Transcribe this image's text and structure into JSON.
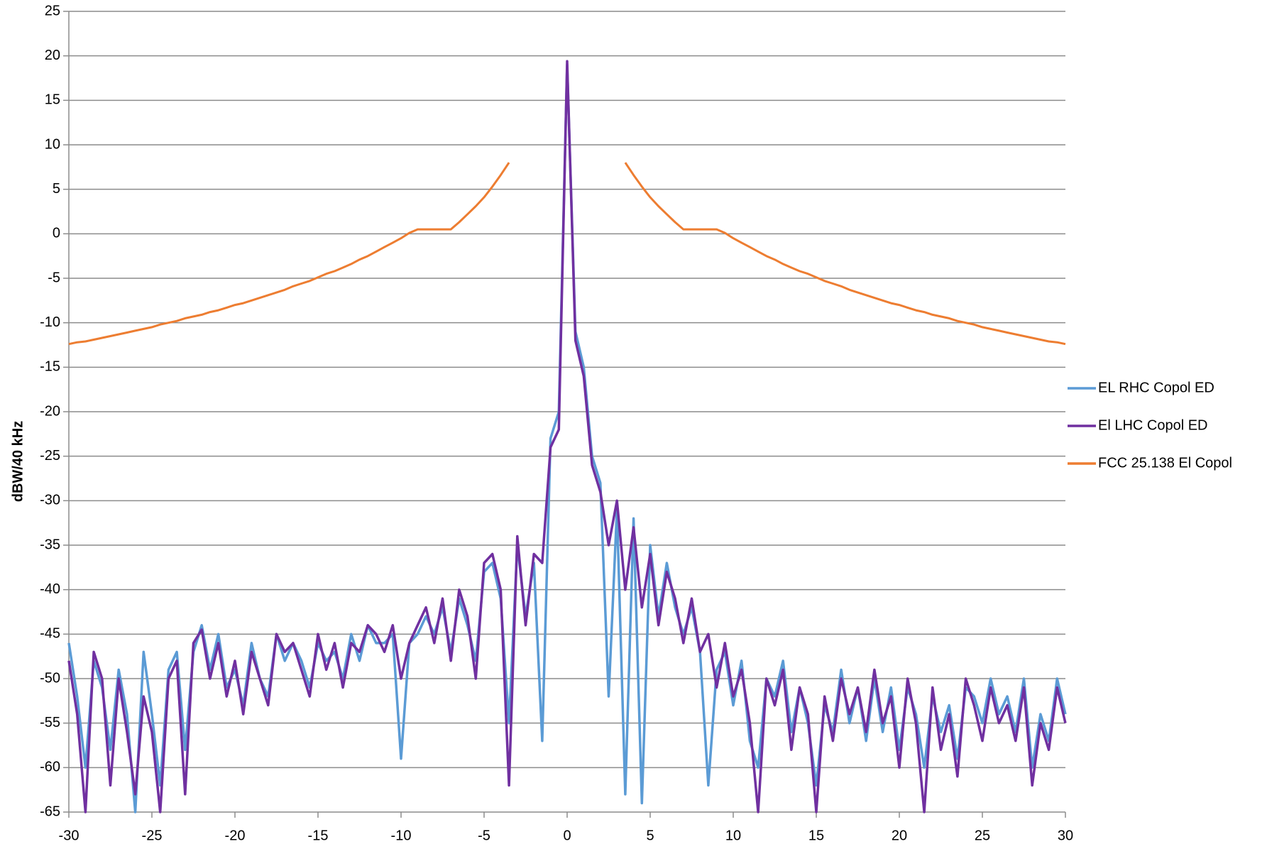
{
  "chart_data": {
    "type": "line",
    "y_label": "dBW/40 kHz",
    "x": [
      -30,
      -29.5,
      -29,
      -28.5,
      -28,
      -27.5,
      -27,
      -26.5,
      -26,
      -25.5,
      -25,
      -24.5,
      -24,
      -23.5,
      -23,
      -22.5,
      -22,
      -21.5,
      -21,
      -20.5,
      -20,
      -19.5,
      -19,
      -18.5,
      -18,
      -17.5,
      -17,
      -16.5,
      -16,
      -15.5,
      -15,
      -14.5,
      -14,
      -13.5,
      -13,
      -12.5,
      -12,
      -11.5,
      -11,
      -10.5,
      -10,
      -9.5,
      -9,
      -8.5,
      -8,
      -7.5,
      -7,
      -6.5,
      -6,
      -5.5,
      -5,
      -4.5,
      -4,
      -3.5,
      -3,
      -2.5,
      -2,
      -1.5,
      -1,
      -0.5,
      0,
      0.5,
      1,
      1.5,
      2,
      2.5,
      3,
      3.5,
      4,
      4.5,
      5,
      5.5,
      6,
      6.5,
      7,
      7.5,
      8,
      8.5,
      9,
      9.5,
      10,
      10.5,
      11,
      11.5,
      12,
      12.5,
      13,
      13.5,
      14,
      14.5,
      15,
      15.5,
      16,
      16.5,
      17,
      17.5,
      18,
      18.5,
      19,
      19.5,
      20,
      20.5,
      21,
      21.5,
      22,
      22.5,
      23,
      23.5,
      24,
      24.5,
      25,
      25.5,
      26,
      26.5,
      27,
      27.5,
      28,
      28.5,
      29,
      29.5,
      30
    ],
    "series": [
      {
        "name": "EL RHC Copol ED",
        "color": "#5b9bd5",
        "values": [
          -46,
          -52,
          -60,
          -48,
          -51,
          -58,
          -49,
          -54,
          -65,
          -47,
          -54,
          -62,
          -49,
          -47,
          -58,
          -47,
          -44,
          -49,
          -45,
          -51,
          -49,
          -53,
          -46,
          -50,
          -52,
          -45,
          -48,
          -46,
          -48,
          -51,
          -46,
          -48,
          -47,
          -50,
          -45,
          -48,
          -44,
          -46,
          -46,
          -45,
          -59,
          -46,
          -45,
          -43,
          -45,
          -42,
          -47,
          -41,
          -44,
          -48,
          -38,
          -37,
          -41,
          -55,
          -35,
          -43,
          -37,
          -57,
          -23,
          -20,
          19,
          -11,
          -15,
          -25,
          -28,
          -52,
          -31,
          -63,
          -32,
          -64,
          -35,
          -43,
          -37,
          -42,
          -45,
          -42,
          -47,
          -62,
          -49,
          -47,
          -53,
          -48,
          -57,
          -60,
          -50,
          -52,
          -48,
          -56,
          -51,
          -55,
          -62,
          -53,
          -56,
          -49,
          -55,
          -51,
          -57,
          -50,
          -56,
          -51,
          -58,
          -51,
          -54,
          -60,
          -52,
          -56,
          -53,
          -59,
          -51,
          -52,
          -55,
          -50,
          -54,
          -52,
          -56,
          -50,
          -60,
          -54,
          -57,
          -50,
          -54
        ]
      },
      {
        "name": "El LHC Copol ED",
        "color": "#7030a0",
        "values": [
          -48,
          -54,
          -65,
          -47,
          -50,
          -62,
          -50,
          -56,
          -63,
          -52,
          -56,
          -65,
          -50,
          -48,
          -63,
          -46,
          -44.5,
          -50,
          -46,
          -52,
          -48,
          -54,
          -47,
          -50,
          -53,
          -45,
          -47,
          -46,
          -49,
          -52,
          -45,
          -49,
          -46,
          -51,
          -46,
          -47,
          -44,
          -45,
          -47,
          -44,
          -50,
          -46,
          -44,
          -42,
          -46,
          -41,
          -48,
          -40,
          -43,
          -50,
          -37,
          -36,
          -40,
          -62,
          -34,
          -44,
          -36,
          -37,
          -24,
          -22,
          19.4,
          -12,
          -16,
          -26,
          -29,
          -35,
          -30,
          -40,
          -33,
          -42,
          -36,
          -44,
          -38,
          -41,
          -46,
          -41,
          -47,
          -45,
          -51,
          -46,
          -52,
          -49,
          -55,
          -65,
          -50,
          -53,
          -49,
          -58,
          -51,
          -54,
          -65,
          -52,
          -57,
          -50,
          -54,
          -51,
          -56,
          -49,
          -55,
          -52,
          -60,
          -50,
          -55,
          -65,
          -51,
          -58,
          -54,
          -61,
          -50,
          -53,
          -57,
          -51,
          -55,
          -53,
          -57,
          -51,
          -62,
          -55,
          -58,
          -51,
          -55
        ]
      },
      {
        "name": "FCC 25.138 El Copol",
        "color": "#ed7d31",
        "values": [
          -12.4,
          -12.2,
          -12.1,
          -11.9,
          -11.7,
          -11.5,
          -11.3,
          -11.1,
          -10.9,
          -10.7,
          -10.5,
          -10.2,
          -10,
          -9.8,
          -9.5,
          -9.3,
          -9.1,
          -8.8,
          -8.6,
          -8.3,
          -8,
          -7.8,
          -7.5,
          -7.2,
          -6.9,
          -6.6,
          -6.3,
          -5.9,
          -5.6,
          -5.3,
          -4.9,
          -4.5,
          -4.2,
          -3.8,
          -3.4,
          -2.9,
          -2.5,
          -2,
          -1.5,
          -1,
          -0.5,
          0.1,
          0.5,
          0.5,
          0.5,
          0.5,
          0.5,
          1.3,
          2.2,
          3.1,
          4.1,
          5.3,
          6.6,
          8,
          null,
          null,
          null,
          null,
          null,
          null,
          null,
          null,
          null,
          null,
          null,
          null,
          null,
          8,
          6.6,
          5.3,
          4.1,
          3.1,
          2.2,
          1.3,
          0.5,
          0.5,
          0.5,
          0.5,
          0.5,
          0.1,
          -0.5,
          -1,
          -1.5,
          -2,
          -2.5,
          -2.9,
          -3.4,
          -3.8,
          -4.2,
          -4.5,
          -4.9,
          -5.3,
          -5.6,
          -5.9,
          -6.3,
          -6.6,
          -6.9,
          -7.2,
          -7.5,
          -7.8,
          -8,
          -8.3,
          -8.6,
          -8.8,
          -9.1,
          -9.3,
          -9.5,
          -9.8,
          -10,
          -10.2,
          -10.5,
          -10.7,
          -10.9,
          -11.1,
          -11.3,
          -11.5,
          -11.7,
          -11.9,
          -12.1,
          -12.2,
          -12.4
        ]
      }
    ],
    "xlim": [
      -30,
      30
    ],
    "xticks": [
      -30,
      -25,
      -20,
      -15,
      -10,
      -5,
      0,
      5,
      10,
      15,
      20,
      25,
      30
    ],
    "ylim": [
      -65,
      25
    ],
    "yticks": [
      -65,
      -60,
      -55,
      -50,
      -45,
      -40,
      -35,
      -30,
      -25,
      -20,
      -15,
      -10,
      -5,
      0,
      5,
      10,
      15,
      20,
      25
    ],
    "grid": true,
    "legend": "right"
  }
}
